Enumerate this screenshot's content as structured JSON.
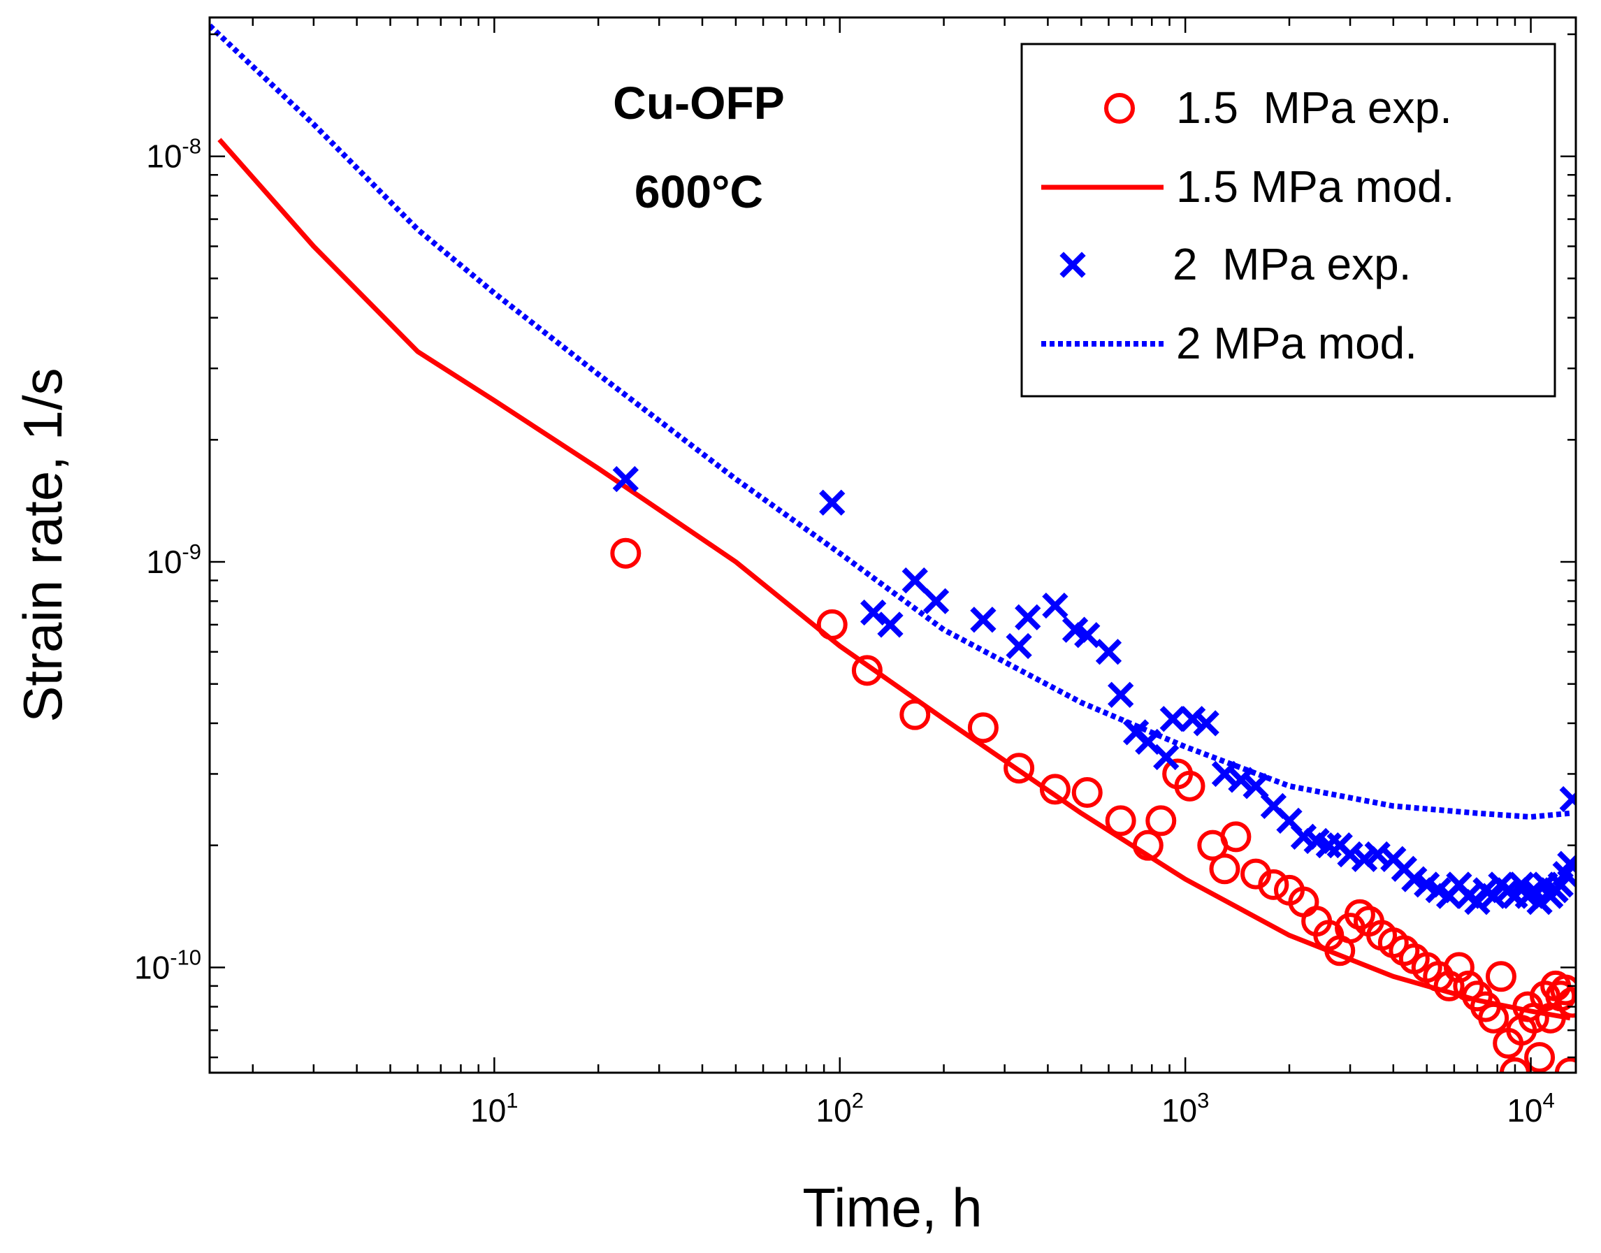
{
  "chart_data": {
    "type": "scatter",
    "title": "",
    "xlabel": "Time, h",
    "ylabel": "Strain rate,  1/s",
    "xscale": "log",
    "yscale": "log",
    "xlim": [
      1.5,
      13500
    ],
    "ylim": [
      5.5e-11,
      2.2e-08
    ],
    "grid": false,
    "x_ticks": [
      {
        "base": "10",
        "exp": "1",
        "value": 10
      },
      {
        "base": "10",
        "exp": "2",
        "value": 100
      },
      {
        "base": "10",
        "exp": "3",
        "value": 1000
      },
      {
        "base": "10",
        "exp": "4",
        "value": 10000
      }
    ],
    "y_ticks": [
      {
        "base": "10",
        "exp": "-10",
        "value": 1e-10
      },
      {
        "base": "10",
        "exp": "-9",
        "value": 1e-09
      },
      {
        "base": "10",
        "exp": "-8",
        "value": 1e-08
      }
    ],
    "annotation": {
      "line1": "Cu-OFP",
      "line2": "600°C"
    },
    "legend_position": "top-right",
    "series": [
      {
        "name": "1.5  MPa exp.",
        "kind": "marker-circle",
        "color": "#ff0000",
        "points": [
          [
            24,
            1.05e-09
          ],
          [
            95,
            7e-10
          ],
          [
            120,
            5.4e-10
          ],
          [
            165,
            4.2e-10
          ],
          [
            260,
            3.9e-10
          ],
          [
            330,
            3.1e-10
          ],
          [
            420,
            2.75e-10
          ],
          [
            520,
            2.7e-10
          ],
          [
            650,
            2.3e-10
          ],
          [
            780,
            2e-10
          ],
          [
            850,
            2.3e-10
          ],
          [
            950,
            3e-10
          ],
          [
            1030,
            2.8e-10
          ],
          [
            1200,
            2e-10
          ],
          [
            1300,
            1.75e-10
          ],
          [
            1400,
            2.1e-10
          ],
          [
            1600,
            1.7e-10
          ],
          [
            1800,
            1.6e-10
          ],
          [
            2000,
            1.55e-10
          ],
          [
            2200,
            1.45e-10
          ],
          [
            2400,
            1.3e-10
          ],
          [
            2600,
            1.2e-10
          ],
          [
            2800,
            1.1e-10
          ],
          [
            3000,
            1.25e-10
          ],
          [
            3200,
            1.35e-10
          ],
          [
            3400,
            1.3e-10
          ],
          [
            3700,
            1.2e-10
          ],
          [
            4000,
            1.15e-10
          ],
          [
            4300,
            1.1e-10
          ],
          [
            4600,
            1.05e-10
          ],
          [
            5000,
            1e-10
          ],
          [
            5400,
            9.5e-11
          ],
          [
            5800,
            9e-11
          ],
          [
            6200,
            1e-10
          ],
          [
            6600,
            9e-11
          ],
          [
            7000,
            8.5e-11
          ],
          [
            7400,
            8e-11
          ],
          [
            7800,
            7.5e-11
          ],
          [
            8200,
            9.5e-11
          ],
          [
            8600,
            6.5e-11
          ],
          [
            9000,
            5.5e-11
          ],
          [
            9400,
            7e-11
          ],
          [
            9800,
            8e-11
          ],
          [
            10200,
            7.5e-11
          ],
          [
            10600,
            6e-11
          ],
          [
            11000,
            8.5e-11
          ],
          [
            11400,
            7.5e-11
          ],
          [
            11800,
            9e-11
          ],
          [
            12200,
            8.5e-11
          ],
          [
            12600,
            8.8e-11
          ],
          [
            13000,
            5.5e-11
          ],
          [
            13200,
            8.2e-11
          ]
        ]
      },
      {
        "name": "1.5 MPa mod.",
        "kind": "line-solid",
        "color": "#ff0000",
        "points": [
          [
            1.6,
            1.1e-08
          ],
          [
            3,
            6e-09
          ],
          [
            6,
            3.3e-09
          ],
          [
            10,
            2.5e-09
          ],
          [
            20,
            1.7e-09
          ],
          [
            50,
            1e-09
          ],
          [
            100,
            6.2e-10
          ],
          [
            200,
            4.1e-10
          ],
          [
            500,
            2.4e-10
          ],
          [
            1000,
            1.65e-10
          ],
          [
            2000,
            1.2e-10
          ],
          [
            4000,
            9.5e-11
          ],
          [
            7000,
            8.3e-11
          ],
          [
            10000,
            7.8e-11
          ],
          [
            13000,
            7.5e-11
          ]
        ]
      },
      {
        "name": "2  MPa exp.",
        "kind": "marker-x",
        "color": "#0000ff",
        "points": [
          [
            24,
            1.6e-09
          ],
          [
            95,
            1.4e-09
          ],
          [
            125,
            7.5e-10
          ],
          [
            140,
            7e-10
          ],
          [
            165,
            9e-10
          ],
          [
            190,
            8e-10
          ],
          [
            260,
            7.2e-10
          ],
          [
            330,
            6.2e-10
          ],
          [
            350,
            7.3e-10
          ],
          [
            420,
            7.8e-10
          ],
          [
            480,
            6.8e-10
          ],
          [
            520,
            6.6e-10
          ],
          [
            600,
            6e-10
          ],
          [
            650,
            4.7e-10
          ],
          [
            720,
            3.8e-10
          ],
          [
            780,
            3.6e-10
          ],
          [
            880,
            3.3e-10
          ],
          [
            920,
            4.1e-10
          ],
          [
            1050,
            4.1e-10
          ],
          [
            1150,
            4e-10
          ],
          [
            1300,
            3e-10
          ],
          [
            1450,
            2.9e-10
          ],
          [
            1600,
            2.8e-10
          ],
          [
            1800,
            2.5e-10
          ],
          [
            2000,
            2.3e-10
          ],
          [
            2200,
            2.1e-10
          ],
          [
            2400,
            2.05e-10
          ],
          [
            2600,
            2e-10
          ],
          [
            2800,
            2e-10
          ],
          [
            3000,
            1.9e-10
          ],
          [
            3300,
            1.85e-10
          ],
          [
            3600,
            1.9e-10
          ],
          [
            4000,
            1.85e-10
          ],
          [
            4300,
            1.75e-10
          ],
          [
            4600,
            1.65e-10
          ],
          [
            5000,
            1.6e-10
          ],
          [
            5400,
            1.55e-10
          ],
          [
            5800,
            1.5e-10
          ],
          [
            6200,
            1.6e-10
          ],
          [
            6600,
            1.5e-10
          ],
          [
            7000,
            1.45e-10
          ],
          [
            7400,
            1.55e-10
          ],
          [
            7800,
            1.5e-10
          ],
          [
            8200,
            1.6e-10
          ],
          [
            8600,
            1.55e-10
          ],
          [
            9000,
            1.5e-10
          ],
          [
            9400,
            1.6e-10
          ],
          [
            9800,
            1.5e-10
          ],
          [
            10200,
            1.55e-10
          ],
          [
            10600,
            1.45e-10
          ],
          [
            11000,
            1.6e-10
          ],
          [
            11400,
            1.5e-10
          ],
          [
            11800,
            1.55e-10
          ],
          [
            12200,
            1.6e-10
          ],
          [
            12600,
            1.7e-10
          ],
          [
            13000,
            1.8e-10
          ],
          [
            13200,
            2.6e-10
          ]
        ]
      },
      {
        "name": "2 MPa mod.",
        "kind": "line-dotted",
        "color": "#0000ff",
        "points": [
          [
            1.5,
            2.1e-08
          ],
          [
            3,
            1.2e-08
          ],
          [
            6,
            6.6e-09
          ],
          [
            10,
            4.6e-09
          ],
          [
            20,
            2.9e-09
          ],
          [
            50,
            1.6e-09
          ],
          [
            100,
            1.05e-09
          ],
          [
            200,
            6.8e-10
          ],
          [
            500,
            4.5e-10
          ],
          [
            1000,
            3.5e-10
          ],
          [
            2000,
            2.8e-10
          ],
          [
            4000,
            2.5e-10
          ],
          [
            7000,
            2.4e-10
          ],
          [
            10000,
            2.35e-10
          ],
          [
            13000,
            2.4e-10
          ]
        ]
      }
    ]
  }
}
